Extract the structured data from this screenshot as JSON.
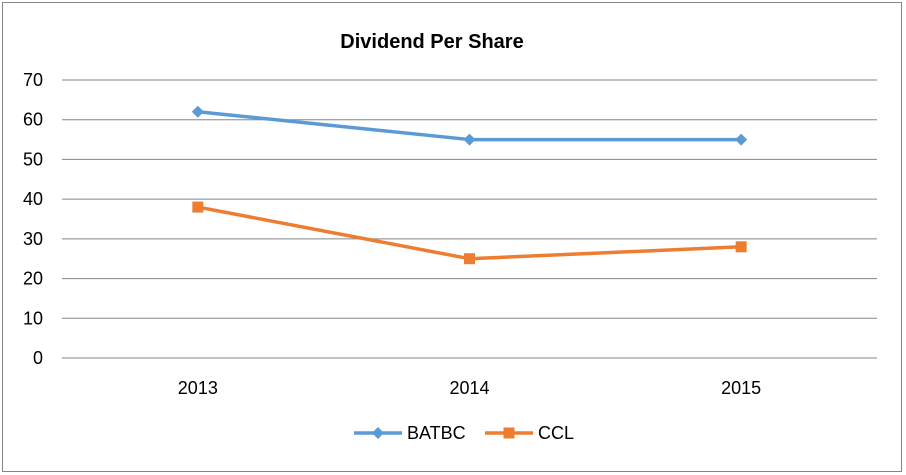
{
  "chart_data": {
    "type": "line",
    "title": "Dividend Per  Share",
    "xlabel": "",
    "ylabel": "",
    "categories": [
      "2013",
      "2014",
      "2015"
    ],
    "ylim": [
      0,
      70
    ],
    "yticks": [
      0,
      10,
      20,
      30,
      40,
      50,
      60,
      70
    ],
    "grid": true,
    "legend_position": "bottom",
    "series": [
      {
        "name": "BATBC",
        "values": [
          62,
          55,
          55
        ],
        "color": "#5B9BD5",
        "marker": "diamond"
      },
      {
        "name": "CCL",
        "values": [
          38,
          25,
          28
        ],
        "color": "#ED7D31",
        "marker": "square"
      }
    ]
  }
}
